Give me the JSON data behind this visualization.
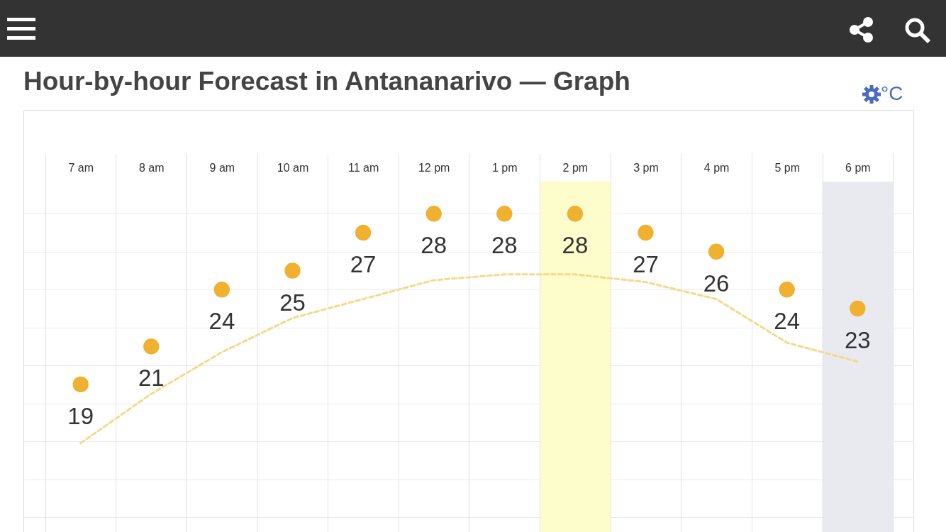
{
  "chart_data": {
    "type": "scatter",
    "title": "Hour-by-hour Forecast in Antananarivo — Graph",
    "annotations": [
      "°C"
    ],
    "categories": [
      "7 am",
      "8 am",
      "9 am",
      "10 am",
      "11 am",
      "12 pm",
      "1 pm",
      "2 pm",
      "3 pm",
      "4 pm",
      "5 pm",
      "6 pm"
    ],
    "series": [
      {
        "color": "#f0b030",
        "marker": "circle",
        "values": [
          19,
          21,
          24,
          25,
          27,
          28,
          28,
          28,
          27,
          26,
          24,
          23
        ],
        "value_labels": [
          "19",
          "21",
          "24",
          "25",
          "27",
          "28",
          "28",
          "28",
          "27",
          "26",
          "24",
          "23"
        ]
      },
      {
        "type": "line",
        "color": "#f7d98b",
        "line_style": "dashed",
        "values": [
          15.9,
          18.5,
          20.7,
          22.5,
          23.5,
          24.5,
          24.8,
          24.8,
          24.4,
          23.5,
          21.2,
          20.2
        ]
      }
    ],
    "bands": [
      {
        "axis": "x",
        "from": "2 pm",
        "to": "2 pm",
        "color": "#fdfccb"
      },
      {
        "axis": "x",
        "from": "6 pm",
        "to": "6 pm",
        "color": "#e9eaf0"
      }
    ],
    "grid": true,
    "tick_labels": "x"
  }
}
